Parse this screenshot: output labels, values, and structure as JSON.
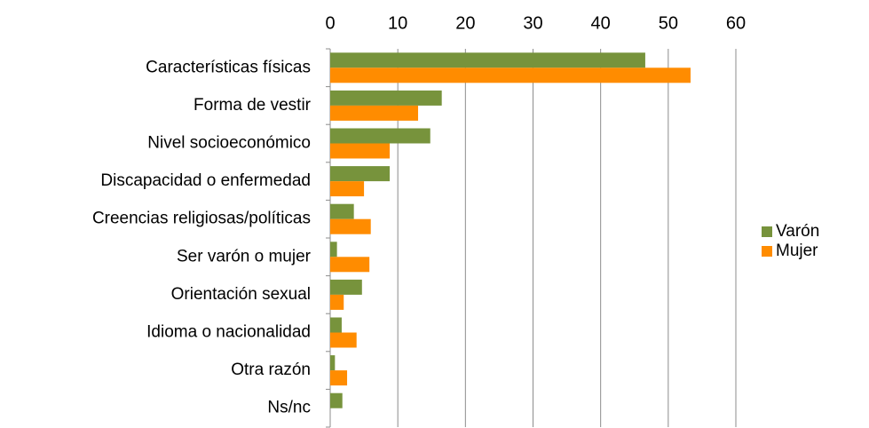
{
  "chart_data": {
    "type": "hbar",
    "categories": [
      "Características físicas",
      "Forma de vestir",
      "Nivel socioeconómico",
      "Discapacidad o enfermedad",
      "Creencias religiosas/políticas",
      "Ser varón o mujer",
      "Orientación sexual",
      "Idioma o nacionalidad",
      "Otra razón",
      "Ns/nc"
    ],
    "series": [
      {
        "name": "Varón",
        "color": "#77933c",
        "values": [
          46.6,
          16.5,
          14.8,
          8.8,
          3.5,
          1.0,
          4.7,
          1.7,
          0.7,
          1.8
        ]
      },
      {
        "name": "Mujer",
        "color": "#ff8c00",
        "values": [
          53.3,
          13.0,
          8.8,
          5.0,
          6.0,
          5.8,
          2.0,
          3.9,
          2.5,
          0
        ]
      }
    ],
    "xlim": [
      0,
      60
    ],
    "xticks": [
      0,
      10,
      20,
      30,
      40,
      50,
      60
    ],
    "grid": true,
    "legend": "right"
  }
}
